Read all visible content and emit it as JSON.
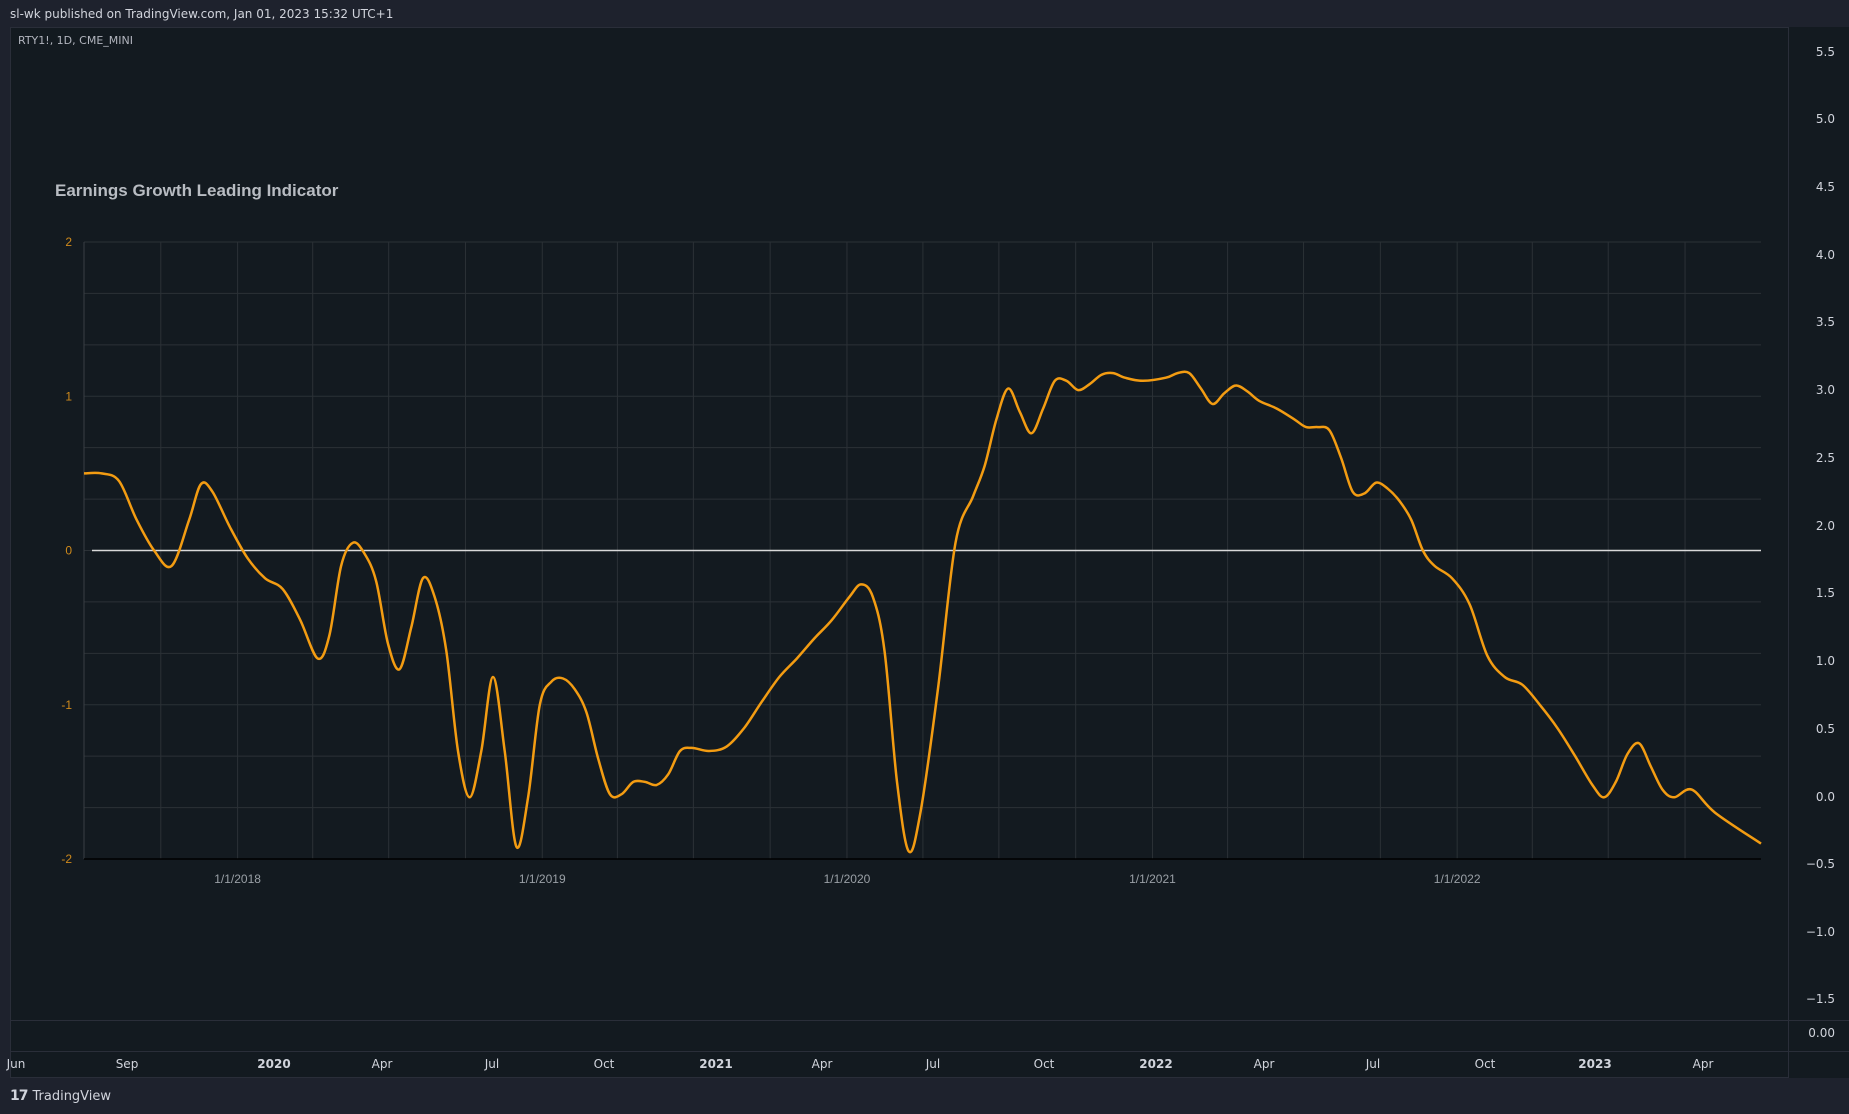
{
  "header": {
    "published": "sl-wk published on TradingView.com, Jan 01, 2023 15:32 UTC+1"
  },
  "symbol_info": "RTY1!, 1D, CME_MINI",
  "price_axis": {
    "ticks": [
      "5.5",
      "5.0",
      "4.5",
      "4.0",
      "3.5",
      "3.0",
      "2.5",
      "2.0",
      "1.5",
      "1.0",
      "0.5",
      "0.0",
      "−0.5",
      "−1.0",
      "−1.5"
    ],
    "pane2_tick": "0.00"
  },
  "time_axis": {
    "ticks": [
      {
        "label": "Jun",
        "year": false
      },
      {
        "label": "Sep",
        "year": false
      },
      {
        "label": "2020",
        "year": true
      },
      {
        "label": "Apr",
        "year": false
      },
      {
        "label": "Jul",
        "year": false
      },
      {
        "label": "Oct",
        "year": false
      },
      {
        "label": "2021",
        "year": true
      },
      {
        "label": "Apr",
        "year": false
      },
      {
        "label": "Jul",
        "year": false
      },
      {
        "label": "Oct",
        "year": false
      },
      {
        "label": "2022",
        "year": true
      },
      {
        "label": "Apr",
        "year": false
      },
      {
        "label": "Jul",
        "year": false
      },
      {
        "label": "Oct",
        "year": false
      },
      {
        "label": "2023",
        "year": true
      },
      {
        "label": "Apr",
        "year": false
      }
    ]
  },
  "footer": {
    "brand": "TradingView"
  },
  "colors": {
    "line": "#f39c12",
    "zero_line": "#d9d9d9",
    "axis_text": "#cf8a1b",
    "grid": "#2b3136",
    "title": "#b8bcc2"
  },
  "chart_data": {
    "type": "line",
    "title": "Earnings Growth Leading Indicator",
    "xlabel": "",
    "ylabel": "",
    "ylim": [
      -2,
      2
    ],
    "xlim": [
      "2017-07-01",
      "2022-12-31"
    ],
    "yticks": [
      2,
      1,
      0,
      -1,
      -2
    ],
    "ytick_labels": [
      "2",
      "1",
      "0",
      "-1",
      "-2"
    ],
    "xticks": [
      "2018-01-01",
      "2019-01-01",
      "2020-01-01",
      "2021-01-01",
      "2022-01-01"
    ],
    "xtick_labels": [
      "1/1/2018",
      "1/1/2019",
      "1/1/2020",
      "1/1/2021",
      "1/1/2022"
    ],
    "grid": true,
    "zero_line": 0,
    "series": [
      {
        "points": [
          [
            "2017-07-01",
            0.5
          ],
          [
            "2017-07-22",
            0.5
          ],
          [
            "2017-08-12",
            0.45
          ],
          [
            "2017-09-02",
            0.2
          ],
          [
            "2017-09-23",
            0
          ],
          [
            "2017-10-14",
            -0.1
          ],
          [
            "2017-11-04",
            0.2
          ],
          [
            "2017-11-18",
            0.43
          ],
          [
            "2017-12-02",
            0.38
          ],
          [
            "2017-12-23",
            0.15
          ],
          [
            "2018-01-13",
            -0.05
          ],
          [
            "2018-02-03",
            -0.18
          ],
          [
            "2018-02-24",
            -0.25
          ],
          [
            "2018-03-17",
            -0.45
          ],
          [
            "2018-04-07",
            -0.7
          ],
          [
            "2018-04-21",
            -0.55
          ],
          [
            "2018-05-05",
            -0.1
          ],
          [
            "2018-05-19",
            0.05
          ],
          [
            "2018-06-02",
            -0.02
          ],
          [
            "2018-06-16",
            -0.2
          ],
          [
            "2018-06-30",
            -0.6
          ],
          [
            "2018-07-14",
            -0.77
          ],
          [
            "2018-07-28",
            -0.5
          ],
          [
            "2018-08-11",
            -0.18
          ],
          [
            "2018-08-25",
            -0.3
          ],
          [
            "2018-09-08",
            -0.65
          ],
          [
            "2018-09-22",
            -1.3
          ],
          [
            "2018-10-06",
            -1.6
          ],
          [
            "2018-10-20",
            -1.3
          ],
          [
            "2018-11-03",
            -0.82
          ],
          [
            "2018-11-17",
            -1.3
          ],
          [
            "2018-12-01",
            -1.92
          ],
          [
            "2018-12-15",
            -1.6
          ],
          [
            "2018-12-29",
            -1.0
          ],
          [
            "2019-01-12",
            -0.85
          ],
          [
            "2019-01-26",
            -0.83
          ],
          [
            "2019-02-09",
            -0.9
          ],
          [
            "2019-02-23",
            -1.05
          ],
          [
            "2019-03-09",
            -1.35
          ],
          [
            "2019-03-23",
            -1.58
          ],
          [
            "2019-04-06",
            -1.58
          ],
          [
            "2019-04-20",
            -1.5
          ],
          [
            "2019-05-04",
            -1.5
          ],
          [
            "2019-05-18",
            -1.52
          ],
          [
            "2019-06-01",
            -1.45
          ],
          [
            "2019-06-15",
            -1.3
          ],
          [
            "2019-06-29",
            -1.28
          ],
          [
            "2019-07-20",
            -1.3
          ],
          [
            "2019-08-10",
            -1.27
          ],
          [
            "2019-08-31",
            -1.15
          ],
          [
            "2019-09-21",
            -0.98
          ],
          [
            "2019-10-12",
            -0.82
          ],
          [
            "2019-11-02",
            -0.7
          ],
          [
            "2019-11-23",
            -0.57
          ],
          [
            "2019-12-14",
            -0.45
          ],
          [
            "2020-01-04",
            -0.3
          ],
          [
            "2020-01-18",
            -0.22
          ],
          [
            "2020-02-01",
            -0.3
          ],
          [
            "2020-02-15",
            -0.65
          ],
          [
            "2020-03-01",
            -1.5
          ],
          [
            "2020-03-15",
            -1.95
          ],
          [
            "2020-03-29",
            -1.7
          ],
          [
            "2020-04-19",
            -0.9
          ],
          [
            "2020-05-10",
            0.05
          ],
          [
            "2020-05-31",
            0.35
          ],
          [
            "2020-06-14",
            0.55
          ],
          [
            "2020-06-28",
            0.85
          ],
          [
            "2020-07-12",
            1.05
          ],
          [
            "2020-07-26",
            0.9
          ],
          [
            "2020-08-09",
            0.76
          ],
          [
            "2020-08-23",
            0.92
          ],
          [
            "2020-09-06",
            1.1
          ],
          [
            "2020-09-20",
            1.1
          ],
          [
            "2020-10-04",
            1.04
          ],
          [
            "2020-10-18",
            1.08
          ],
          [
            "2020-11-01",
            1.14
          ],
          [
            "2020-11-15",
            1.15
          ],
          [
            "2020-11-29",
            1.12
          ],
          [
            "2020-12-20",
            1.1
          ],
          [
            "2021-01-17",
            1.12
          ],
          [
            "2021-01-31",
            1.15
          ],
          [
            "2021-02-14",
            1.15
          ],
          [
            "2021-02-28",
            1.05
          ],
          [
            "2021-03-14",
            0.95
          ],
          [
            "2021-03-28",
            1.02
          ],
          [
            "2021-04-11",
            1.07
          ],
          [
            "2021-04-25",
            1.03
          ],
          [
            "2021-05-09",
            0.97
          ],
          [
            "2021-05-30",
            0.92
          ],
          [
            "2021-06-20",
            0.85
          ],
          [
            "2021-07-04",
            0.8
          ],
          [
            "2021-07-18",
            0.8
          ],
          [
            "2021-08-01",
            0.78
          ],
          [
            "2021-08-15",
            0.6
          ],
          [
            "2021-08-29",
            0.38
          ],
          [
            "2021-09-12",
            0.37
          ],
          [
            "2021-09-26",
            0.44
          ],
          [
            "2021-10-10",
            0.4
          ],
          [
            "2021-10-24",
            0.32
          ],
          [
            "2021-11-07",
            0.2
          ],
          [
            "2021-11-21",
            0.0
          ],
          [
            "2021-12-05",
            -0.1
          ],
          [
            "2021-12-26",
            -0.18
          ],
          [
            "2022-01-16",
            -0.35
          ],
          [
            "2022-02-06",
            -0.68
          ],
          [
            "2022-02-27",
            -0.82
          ],
          [
            "2022-03-20",
            -0.87
          ],
          [
            "2022-04-10",
            -1.0
          ],
          [
            "2022-05-01",
            -1.15
          ],
          [
            "2022-05-22",
            -1.33
          ],
          [
            "2022-06-12",
            -1.52
          ],
          [
            "2022-06-26",
            -1.6
          ],
          [
            "2022-07-10",
            -1.5
          ],
          [
            "2022-07-24",
            -1.32
          ],
          [
            "2022-08-07",
            -1.25
          ],
          [
            "2022-08-21",
            -1.4
          ],
          [
            "2022-09-04",
            -1.55
          ],
          [
            "2022-09-18",
            -1.6
          ],
          [
            "2022-10-09",
            -1.55
          ],
          [
            "2022-11-06",
            -1.7
          ],
          [
            "2022-12-31",
            -1.9
          ]
        ]
      }
    ]
  }
}
